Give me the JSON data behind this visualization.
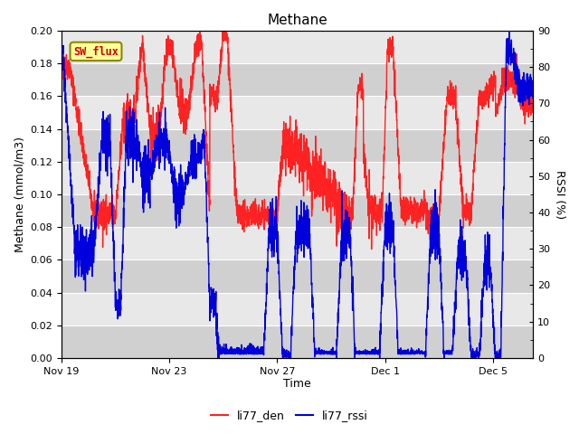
{
  "title": "Methane",
  "ylabel_left": "Methane (mmol/m3)",
  "ylabel_right": "RSSI (%)",
  "xlabel": "Time",
  "ylim_left": [
    0.0,
    0.2
  ],
  "ylim_right": [
    0,
    90
  ],
  "yticks_left": [
    0.0,
    0.02,
    0.04,
    0.06,
    0.08,
    0.1,
    0.12,
    0.14,
    0.16,
    0.18,
    0.2
  ],
  "yticks_right": [
    0,
    10,
    20,
    30,
    40,
    50,
    60,
    70,
    80,
    90
  ],
  "color_red": "#FF2222",
  "color_blue": "#0000DD",
  "bg_outer": "#FFFFFF",
  "bg_light": "#E8E8E8",
  "bg_dark": "#D0D0D0",
  "grid_color": "#C8C8C8",
  "legend_labels": [
    "li77_den",
    "li77_rssi"
  ],
  "sw_flux_label": "SW_flux",
  "sw_flux_bg": "#FFFF99",
  "sw_flux_border": "#888800",
  "sw_flux_text_color": "#CC0000",
  "xtick_labels": [
    "Nov 19",
    "Nov 23",
    "Nov 27",
    "Dec 1",
    "Dec 5"
  ],
  "xtick_positions": [
    0,
    4,
    8,
    12,
    16
  ],
  "xlim": [
    0,
    17.5
  ]
}
